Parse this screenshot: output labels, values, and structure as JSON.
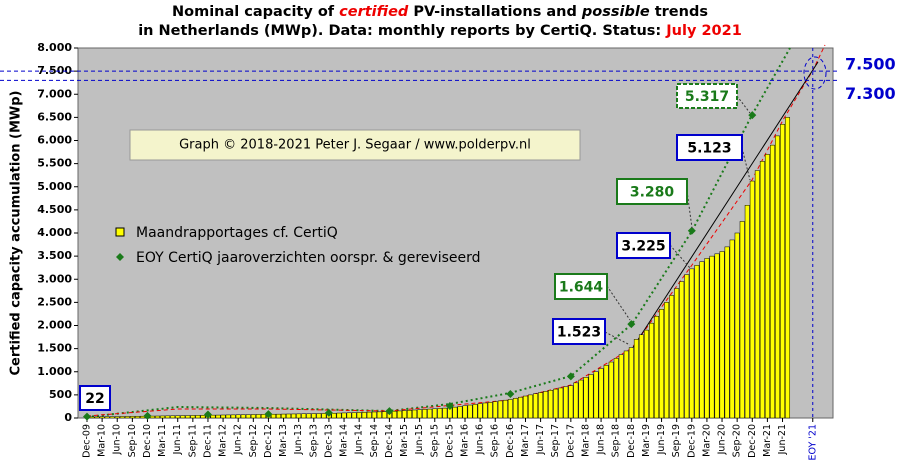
{
  "chart_data": {
    "type": "bar",
    "title_lines": [
      [
        "Nominal capacity of ",
        "certified",
        " PV-installations and ",
        "possible",
        " trends"
      ],
      [
        "in Netherlands (MWp). Data: monthly reports by CertiQ. Status: ",
        "July 2021"
      ]
    ],
    "y_label": "Certified capacity accumulation (MWp)",
    "copyright": "Graph © 2018-2021 Peter J. Segaar / www.polderpv.nl",
    "categories": [
      "Dec-09",
      null,
      null,
      "Mar-10",
      null,
      null,
      "Jun-10",
      null,
      null,
      "Sep-10",
      null,
      null,
      "Dec-10",
      null,
      null,
      "Mar-11",
      null,
      null,
      "Jun-11",
      null,
      null,
      "Sep-11",
      null,
      null,
      "Dec-11",
      null,
      null,
      "Mar-12",
      null,
      null,
      "Jun-12",
      null,
      null,
      "Sep-12",
      null,
      null,
      "Dec-12",
      null,
      null,
      "Mar-13",
      null,
      null,
      "Jun-13",
      null,
      null,
      "Sep-13",
      null,
      null,
      "Dec-13",
      null,
      null,
      "Mar-14",
      null,
      null,
      "Jun-14",
      null,
      null,
      "Sep-14",
      null,
      null,
      "Dec-14",
      null,
      null,
      "Mar-15",
      null,
      null,
      "Jun-15",
      null,
      null,
      "Sep-15",
      null,
      null,
      "Dec-15",
      null,
      null,
      "Mar-16",
      null,
      null,
      "Jun-16",
      null,
      null,
      "Sep-16",
      null,
      null,
      "Dec-16",
      null,
      null,
      "Mar-17",
      null,
      null,
      "Jun-17",
      null,
      null,
      "Sep-17",
      null,
      null,
      "Dec-17",
      null,
      null,
      "Mar-18",
      null,
      null,
      "Jun-18",
      null,
      null,
      "Sep-18",
      null,
      null,
      "Dec-18",
      null,
      null,
      "Mar-19",
      null,
      null,
      "Jun-19",
      null,
      null,
      "Sep-19",
      null,
      null,
      "Dec-19",
      null,
      null,
      "Mar-20",
      null,
      null,
      "Jun-20",
      null,
      null,
      "Sep-20",
      null,
      null,
      "Dec-20",
      null,
      null,
      "Mar-21",
      null,
      null,
      "Jun-21",
      null,
      null,
      null,
      null,
      null,
      "EOY '21"
    ],
    "series": [
      {
        "name": "Maandrapportages cf. CertiQ",
        "color": "#ffff00",
        "values": [
          22,
          24,
          25,
          27,
          28,
          30,
          31,
          33,
          34,
          36,
          37,
          39,
          40,
          42,
          43,
          45,
          47,
          48,
          50,
          52,
          53,
          55,
          57,
          58,
          60,
          62,
          63,
          65,
          67,
          68,
          70,
          72,
          73,
          75,
          77,
          78,
          80,
          82,
          83,
          85,
          87,
          88,
          90,
          92,
          93,
          95,
          97,
          98,
          100,
          103,
          107,
          110,
          113,
          117,
          120,
          123,
          127,
          130,
          133,
          137,
          140,
          147,
          153,
          160,
          167,
          173,
          180,
          187,
          193,
          200,
          207,
          213,
          220,
          235,
          250,
          265,
          280,
          295,
          310,
          325,
          340,
          355,
          370,
          385,
          400,
          425,
          450,
          475,
          500,
          525,
          550,
          575,
          600,
          625,
          650,
          675,
          700,
          760,
          820,
          880,
          940,
          1000,
          1070,
          1140,
          1210,
          1290,
          1370,
          1450,
          1523,
          1700,
          1800,
          1900,
          2050,
          2200,
          2350,
          2500,
          2650,
          2800,
          2950,
          3100,
          3225,
          3300,
          3380,
          3450,
          3500,
          3550,
          3600,
          3700,
          3850,
          4000,
          4250,
          4600,
          5123,
          5350,
          5550,
          5700,
          5900,
          6100,
          6350,
          6500,
          null,
          null,
          null,
          null,
          null
        ]
      },
      {
        "name": "EOY CertiQ jaaroverzichten oorspr. & gereviseerd",
        "color": "#1a7a1a",
        "values": [
          30,
          null,
          null,
          null,
          null,
          null,
          null,
          null,
          null,
          null,
          null,
          null,
          45,
          null,
          null,
          null,
          null,
          null,
          null,
          null,
          null,
          null,
          null,
          null,
          75,
          null,
          null,
          null,
          null,
          null,
          null,
          null,
          null,
          null,
          null,
          null,
          85,
          null,
          null,
          null,
          null,
          null,
          null,
          null,
          null,
          null,
          null,
          null,
          110,
          null,
          null,
          null,
          null,
          null,
          null,
          null,
          null,
          null,
          null,
          null,
          150,
          null,
          null,
          null,
          null,
          null,
          null,
          null,
          null,
          null,
          null,
          null,
          260,
          null,
          null,
          null,
          null,
          null,
          null,
          null,
          null,
          null,
          null,
          null,
          520,
          null,
          null,
          null,
          null,
          null,
          null,
          null,
          null,
          null,
          null,
          null,
          900,
          null,
          null,
          null,
          null,
          null,
          null,
          null,
          null,
          null,
          null,
          null,
          2030,
          null,
          null,
          null,
          null,
          null,
          null,
          null,
          null,
          null,
          null,
          null,
          4050,
          null,
          null,
          null,
          null,
          null,
          null,
          null,
          null,
          null,
          null,
          null,
          6550,
          null,
          null,
          null,
          null,
          null,
          null,
          null,
          null,
          null,
          null,
          null,
          null
        ]
      }
    ],
    "annotations": [
      "22",
      "1.523",
      "1.644",
      "3.225",
      "3.280",
      "5.123",
      "5.317"
    ],
    "ref_lines": [
      {
        "value": 7500,
        "label": "7.500"
      },
      {
        "value": 7300,
        "label": "7.300"
      }
    ],
    "ylim": [
      0,
      8000
    ],
    "yticks": [
      0,
      500,
      {
        "value": 1000,
        "label": "1.000"
      },
      {
        "value": 1500,
        "label": "1.500"
      },
      {
        "value": 2000,
        "label": "2.000"
      },
      {
        "value": 2500,
        "label": "2.500"
      },
      {
        "value": 3000,
        "label": "3.000"
      },
      {
        "value": 3500,
        "label": "3.500"
      },
      {
        "value": 4000,
        "label": "4.000"
      },
      {
        "value": 4500,
        "label": "4.500"
      },
      {
        "value": 5000,
        "label": "5.000"
      },
      {
        "value": 5500,
        "label": "5.500"
      },
      {
        "value": 6000,
        "label": "6.000"
      },
      {
        "value": 6500,
        "label": "6.500"
      },
      {
        "value": 7000,
        "label": "7.000"
      },
      {
        "value": 7500,
        "label": "7.500"
      },
      {
        "value": 8000,
        "label": "8.000"
      }
    ],
    "grid": false
  }
}
